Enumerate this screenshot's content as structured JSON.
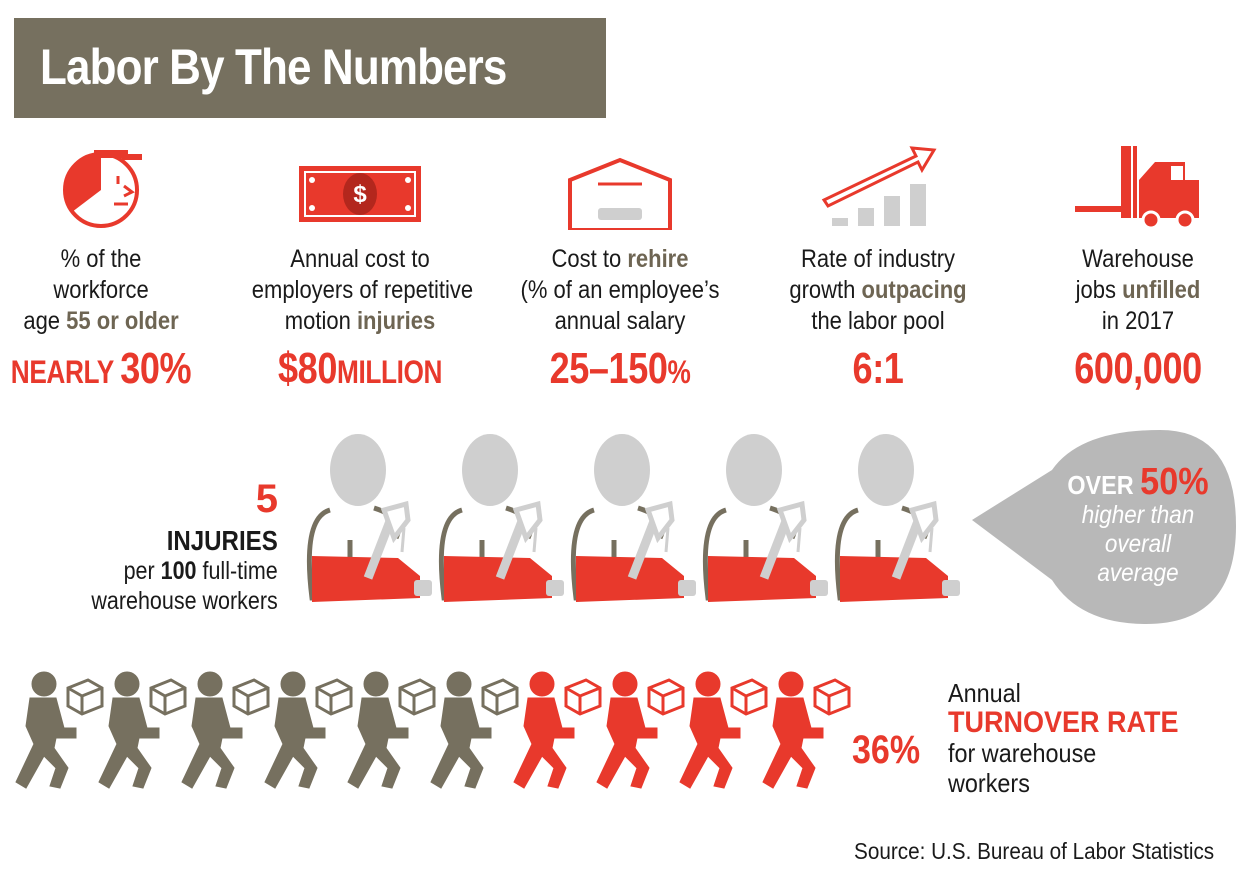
{
  "title": "Labor By The Numbers",
  "colors": {
    "red": "#e8392c",
    "taupe": "#76705f",
    "gray": "#cfcfcf",
    "dark_gray_text": "#6e6553"
  },
  "stats": [
    {
      "icon": "worker-face-icon",
      "line1": "% of the",
      "line2": "workforce",
      "line3_pre": "age ",
      "line3_hl": "55 or older",
      "line3_post": "",
      "value_a": "NEARLY ",
      "value_b": "30",
      "value_c": "%"
    },
    {
      "icon": "dollar-bill-icon",
      "line1": "Annual cost to",
      "line2": "employers of repetitive",
      "line3_pre": "motion ",
      "line3_hl": "injuries",
      "line3_post": "",
      "value_a": "$",
      "value_b": "80",
      "value_c": "MILLION"
    },
    {
      "icon": "envelope-icon",
      "line1_pre": "Cost to ",
      "line1_hl": "rehire",
      "line2": "(% of an employee’s",
      "line3": "annual salary",
      "value_a": "",
      "value_b": "25–150",
      "value_c": "%"
    },
    {
      "icon": "growth-chart-icon",
      "line1": "Rate of industry",
      "line2_pre": "growth ",
      "line2_hl": "outpacing",
      "line3": "the labor pool",
      "value_a": "",
      "value_b": "6:1",
      "value_c": ""
    },
    {
      "icon": "forklift-icon",
      "line1": "Warehouse",
      "line2_pre": "jobs ",
      "line2_hl": "unfilled",
      "line3": "in 2017",
      "value_a": "",
      "value_b": "600,000",
      "value_c": ""
    }
  ],
  "injuries": {
    "number": "5",
    "word": "INJURIES",
    "per_pre": "per ",
    "per_num": "100",
    "per_post": " full-time",
    "line3": "warehouse workers",
    "figure_count": 5,
    "bubble_over": "OVER ",
    "bubble_pct": "50%",
    "bubble_l1": "higher than",
    "bubble_l2": "overall",
    "bubble_l3": "average"
  },
  "turnover": {
    "pct": "36%",
    "line1": "Annual",
    "rate": "TURNOVER RATE",
    "line3": "for warehouse",
    "line4": "workers",
    "figure_count": 10,
    "highlighted_fraction": 0.36
  },
  "source": "Source: U.S. Bureau of Labor Statistics"
}
